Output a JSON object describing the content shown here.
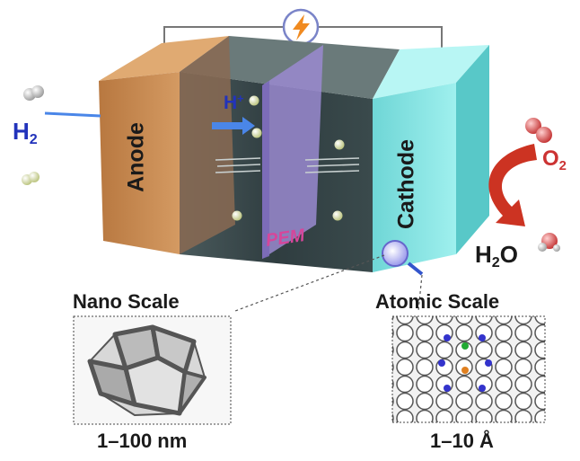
{
  "cell": {
    "anode_label": "Anode",
    "cathode_label": "Cathode",
    "membrane_label": "PEM",
    "proton_label": {
      "base": "H",
      "sup": "+"
    }
  },
  "inputs": {
    "hydrogen": {
      "base": "H",
      "sub": "2"
    }
  },
  "outputs": {
    "oxygen": {
      "base": "O",
      "sub": "2"
    },
    "water": {
      "base": "H",
      "sub": "2",
      "tail": "O"
    }
  },
  "scales": {
    "nano": {
      "title": "Nano Scale",
      "range": "1–100 nm"
    },
    "atomic": {
      "title": "Atomic Scale",
      "range": "1–10 Å"
    }
  },
  "icons": [
    "lightning-bolt-icon",
    "magnifier-icon",
    "hydrogen-molecule-icon",
    "oxygen-molecule-icon",
    "water-molecule-icon",
    "curved-arrow-icon"
  ],
  "colors": {
    "anode": "#c98a52",
    "cathode": "#7fe0e0",
    "electrolyte": "#3d4d50",
    "membrane": "#9a8ad0",
    "membrane_label": "#d6469a",
    "label_blue": "#2233bb",
    "oxygen_red": "#cc3333",
    "reaction_arrow": "#cc3322",
    "lightning": "#f08a20"
  }
}
